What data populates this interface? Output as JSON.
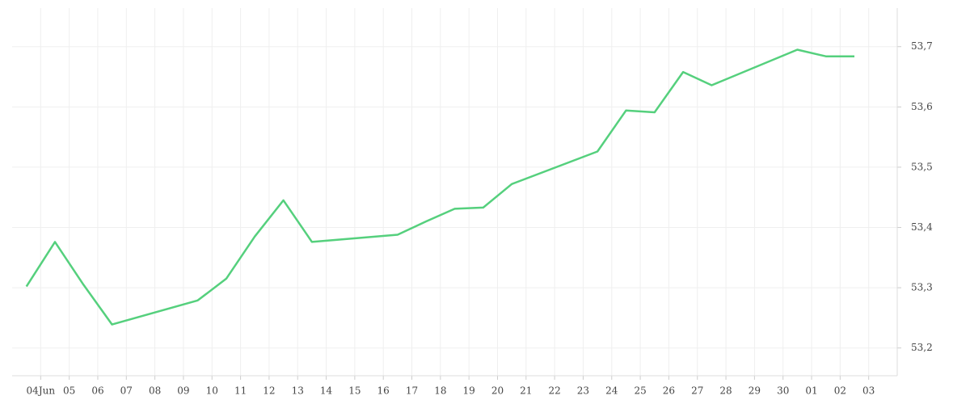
{
  "chart_data": {
    "type": "line",
    "x": [
      "06-03",
      "06-04",
      "06-05",
      "06-06",
      "06-09",
      "06-10",
      "06-11",
      "06-12",
      "06-13",
      "06-16",
      "06-17",
      "06-18",
      "06-19",
      "06-20",
      "06-23",
      "06-24",
      "06-25",
      "06-26",
      "06-27",
      "06-30",
      "07-01",
      "07-02"
    ],
    "series": [
      {
        "color": "#55d07d",
        "values": [
          53.302,
          53.376,
          53.305,
          53.239,
          53.279,
          53.315,
          53.385,
          53.445,
          53.376,
          53.388,
          53.41,
          53.431,
          53.433,
          53.472,
          53.526,
          53.594,
          53.591,
          53.658,
          53.636,
          53.695,
          53.684,
          53.684
        ]
      }
    ],
    "xlim": [
      "06-03",
      "07-04"
    ],
    "xticks": [
      {
        "value": "06-04",
        "label": "04Jun"
      },
      {
        "value": "06-05",
        "label": "05"
      },
      {
        "value": "06-06",
        "label": "06"
      },
      {
        "value": "06-07",
        "label": "07"
      },
      {
        "value": "06-08",
        "label": "08"
      },
      {
        "value": "06-09",
        "label": "09"
      },
      {
        "value": "06-10",
        "label": "10"
      },
      {
        "value": "06-11",
        "label": "11"
      },
      {
        "value": "06-12",
        "label": "12"
      },
      {
        "value": "06-13",
        "label": "13"
      },
      {
        "value": "06-14",
        "label": "14"
      },
      {
        "value": "06-15",
        "label": "15"
      },
      {
        "value": "06-16",
        "label": "16"
      },
      {
        "value": "06-17",
        "label": "17"
      },
      {
        "value": "06-18",
        "label": "18"
      },
      {
        "value": "06-19",
        "label": "19"
      },
      {
        "value": "06-20",
        "label": "20"
      },
      {
        "value": "06-21",
        "label": "21"
      },
      {
        "value": "06-22",
        "label": "22"
      },
      {
        "value": "06-23",
        "label": "23"
      },
      {
        "value": "06-24",
        "label": "24"
      },
      {
        "value": "06-25",
        "label": "25"
      },
      {
        "value": "06-26",
        "label": "26"
      },
      {
        "value": "06-27",
        "label": "27"
      },
      {
        "value": "06-28",
        "label": "28"
      },
      {
        "value": "06-29",
        "label": "29"
      },
      {
        "value": "06-30",
        "label": "30"
      },
      {
        "value": "07-01",
        "label": "01"
      },
      {
        "value": "07-02",
        "label": "02"
      },
      {
        "value": "07-03",
        "label": "03"
      }
    ],
    "ylim": [
      53.154,
      53.764
    ],
    "yticks": [
      {
        "value": 53.2,
        "label": "53,2"
      },
      {
        "value": 53.3,
        "label": "53,3"
      },
      {
        "value": 53.4,
        "label": "53,4"
      },
      {
        "value": 53.5,
        "label": "53,5"
      },
      {
        "value": 53.6,
        "label": "53,6"
      },
      {
        "value": 53.7,
        "label": "53,7"
      }
    ],
    "y_axis_side": "right",
    "grid": true
  }
}
